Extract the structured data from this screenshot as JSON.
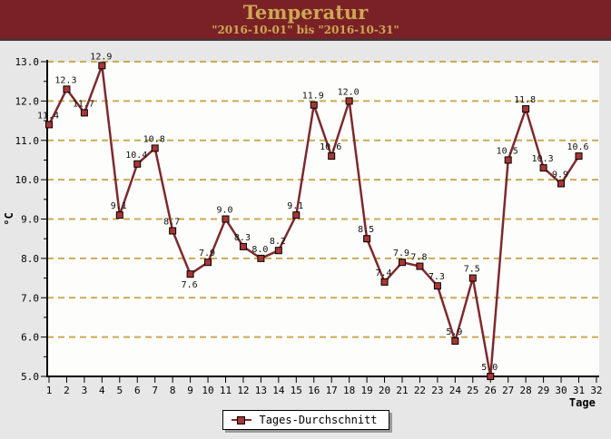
{
  "header": {
    "title": "Temperatur",
    "subtitle": "\"2016-10-01\" bis \"2016-10-31\""
  },
  "legend": {
    "label": "Tages-Durchschnitt"
  },
  "chart_data": {
    "type": "line",
    "title": "Temperatur",
    "subtitle": "\"2016-10-01\" bis \"2016-10-31\"",
    "xlabel": "Tage",
    "ylabel": "°C",
    "x": [
      1,
      2,
      3,
      4,
      5,
      6,
      7,
      8,
      9,
      10,
      11,
      12,
      13,
      14,
      15,
      16,
      17,
      18,
      19,
      20,
      21,
      22,
      23,
      24,
      25,
      26,
      27,
      28,
      29,
      30,
      31
    ],
    "series": [
      {
        "name": "Tages-Durchschnitt",
        "values": [
          11.4,
          12.3,
          11.7,
          12.9,
          9.1,
          10.4,
          10.8,
          8.7,
          7.6,
          7.9,
          9.0,
          8.3,
          8.0,
          8.2,
          9.1,
          11.9,
          10.6,
          12.0,
          8.5,
          7.4,
          7.9,
          7.8,
          7.3,
          5.9,
          7.5,
          5.0,
          10.5,
          11.8,
          10.3,
          9.9,
          10.6
        ]
      }
    ],
    "ylim": [
      5.0,
      13.0
    ],
    "y_major_step": 1.0,
    "y_minor_step": 0.5,
    "xticks": [
      1,
      2,
      3,
      4,
      5,
      6,
      7,
      8,
      9,
      10,
      11,
      12,
      13,
      14,
      15,
      16,
      17,
      18,
      19,
      20,
      21,
      22,
      23,
      24,
      25,
      26,
      27,
      28,
      29,
      30,
      31,
      32
    ],
    "grid": "horizontal-dashed",
    "point_labels": true,
    "legend_position": "bottom-center",
    "colors": {
      "page_bg": "#e7e7e7",
      "plot_bg": "#fdfdfc",
      "grid": "#c9ab55",
      "line": "#7d2a2e",
      "marker_fill": "#a93636",
      "marker_stroke": "#000000",
      "axis": "#000000",
      "header_bg": "#7a2127",
      "header_text": "#cda852"
    }
  }
}
